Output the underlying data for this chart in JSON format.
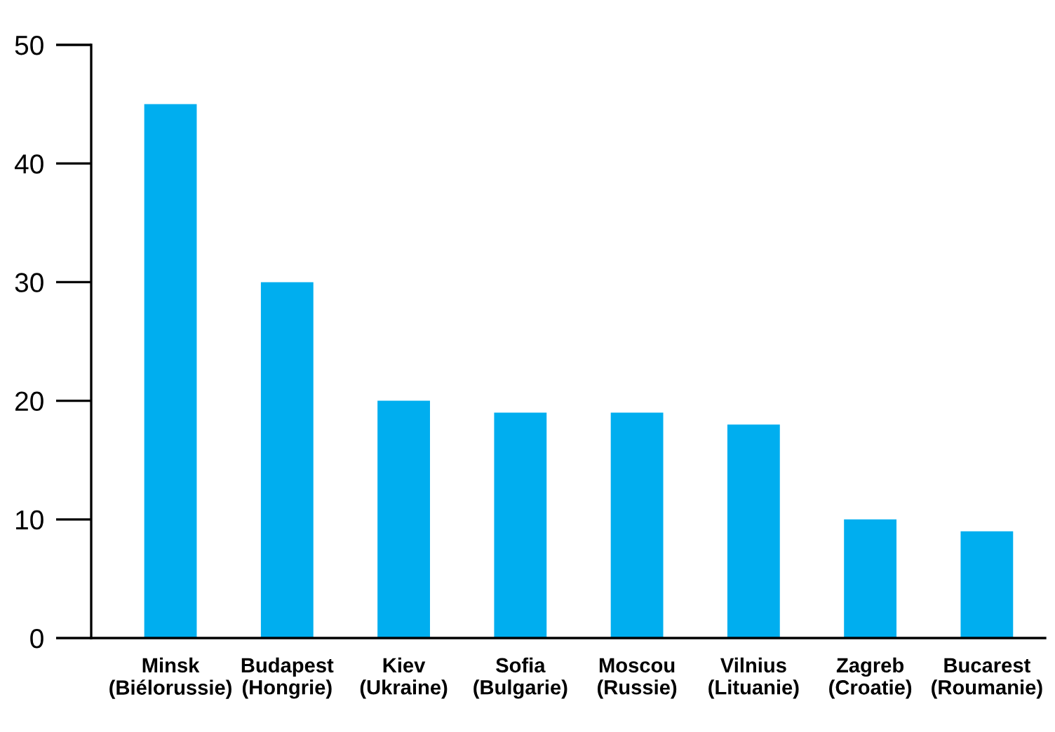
{
  "chart_data": {
    "type": "bar",
    "categories": [
      "Minsk\n(Biélorussie)",
      "Budapest\n(Hongrie)",
      "Kiev\n(Ukraine)",
      "Sofia\n(Bulgarie)",
      "Moscou\n(Russie)",
      "Vilnius\n(Lituanie)",
      "Zagreb\n(Croatie)",
      "Bucarest\n(Roumanie)"
    ],
    "values": [
      45,
      30,
      20,
      19,
      19,
      18,
      10,
      9
    ],
    "color": "#00aeef",
    "ylim": [
      0,
      50
    ],
    "yticks": [
      0,
      10,
      20,
      30,
      40,
      50
    ],
    "grid": false,
    "legend": false
  }
}
